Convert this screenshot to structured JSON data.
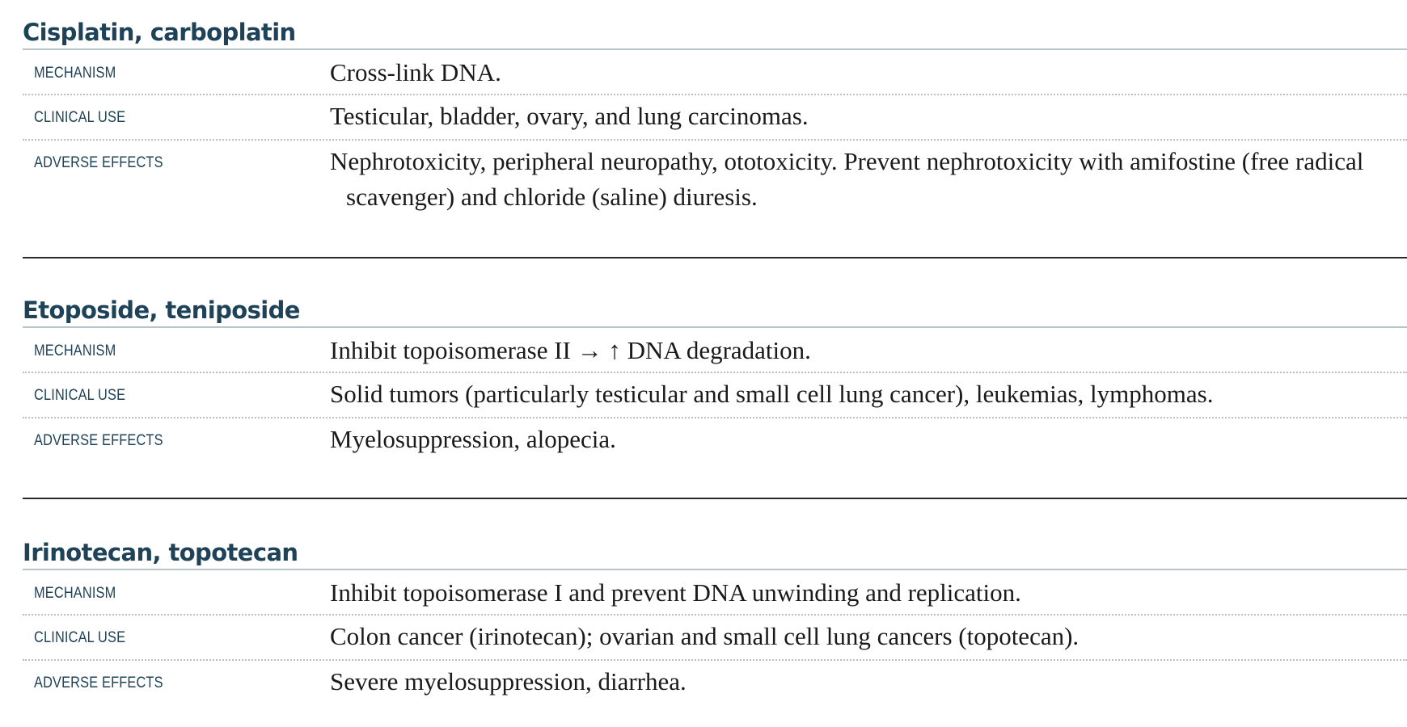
{
  "sections": [
    {
      "title": "Cisplatin, carboplatin",
      "rows": [
        {
          "label": "MECHANISM",
          "text": "Cross-link DNA."
        },
        {
          "label": "CLINICAL USE",
          "text": "Testicular, bladder, ovary, and lung carcinomas."
        },
        {
          "label": "ADVERSE EFFECTS",
          "text": "Nephrotoxicity, peripheral neuropathy, ototoxicity. Prevent nephrotoxicity with amifostine (free radical scavenger) and chloride (saline) diuresis."
        }
      ]
    },
    {
      "title": "Etoposide, teniposide",
      "rows": [
        {
          "label": "MECHANISM",
          "text": "Inhibit topoisomerase II → ↑ DNA degradation."
        },
        {
          "label": "CLINICAL USE",
          "text": "Solid tumors (particularly testicular and small cell lung cancer), leukemias, lymphomas."
        },
        {
          "label": "ADVERSE EFFECTS",
          "text": "Myelosuppression, alopecia."
        }
      ]
    },
    {
      "title": "Irinotecan, topotecan",
      "rows": [
        {
          "label": "MECHANISM",
          "text": "Inhibit topoisomerase I and prevent DNA unwinding and replication."
        },
        {
          "label": "CLINICAL USE",
          "text": "Colon cancer (irinotecan); ovarian and small cell lung cancers (topotecan)."
        },
        {
          "label": "ADVERSE EFFECTS",
          "text": "Severe myelosuppression, diarrhea."
        }
      ]
    }
  ],
  "colors": {
    "heading": "#1e4257",
    "body_text": "#1a1a1a",
    "rule": "#b9c2c8"
  }
}
